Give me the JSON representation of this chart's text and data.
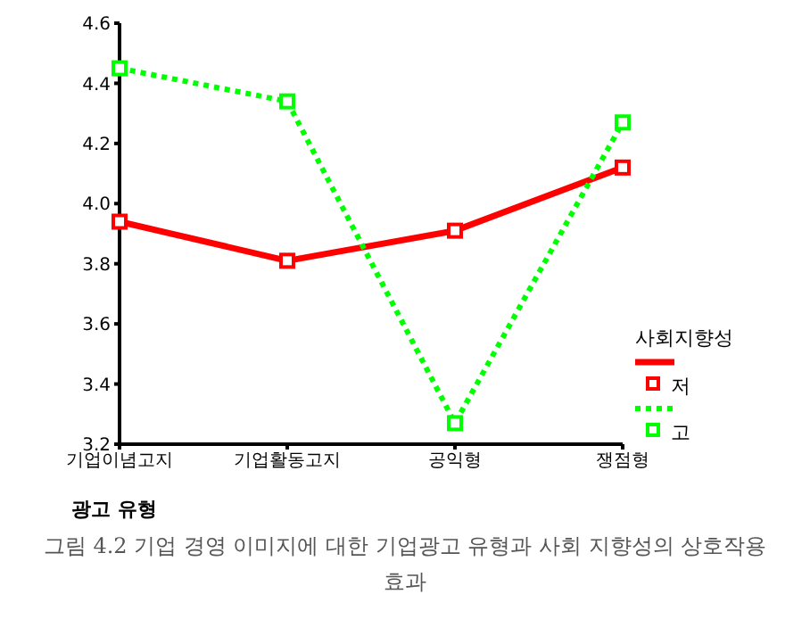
{
  "chart_data": {
    "type": "line",
    "xlabel": "광고 유형",
    "legend_title": "사회지향성",
    "legend": "right",
    "marker": "square",
    "grid": false,
    "categories": [
      "기업이념고지",
      "기업활동고지",
      "공익형",
      "쟁점형"
    ],
    "ylim": [
      3.2,
      4.6
    ],
    "yticks": [
      3.2,
      3.4,
      3.6,
      3.8,
      {
        "value": 4,
        "label": "4.0"
      },
      4.2,
      4.4,
      4.6
    ],
    "series": [
      {
        "name": "저",
        "color": "#ff0000",
        "line_style": "solid",
        "values": [
          3.94,
          3.81,
          3.91,
          4.12
        ]
      },
      {
        "name": "고",
        "color": "#00ff00",
        "line_style": "dotted",
        "values": [
          4.45,
          4.34,
          3.27,
          4.27
        ]
      }
    ],
    "annotations": [
      "그림 4.2 기업 경영 이미지에 대한 기업광고 유형과 사회 지향성의 상호작용효과"
    ]
  }
}
